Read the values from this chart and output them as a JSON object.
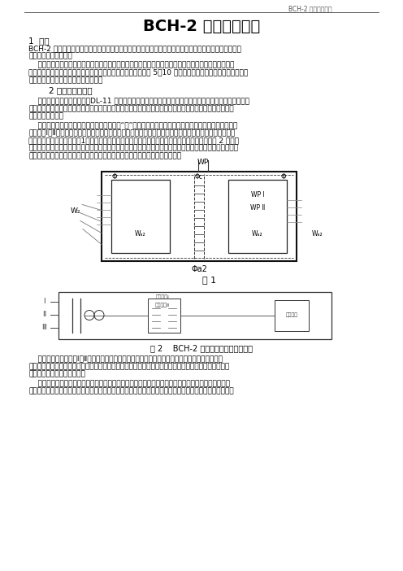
{
  "page_header": "BCH-2 型差动继电器",
  "title": "BCH-2 型差动继电器",
  "section1_heading": "1  用途",
  "section1_para1_l1": "BCH-2 型差动继电器（以下简称继电器）用于两绕组或三绕组电力变压器以及交流发电机的单相差动保护",
  "section1_para1_l2": "线路中，作为主保护。",
  "section1_para2_l1": "    继电器能预防在非故障状态时出现的暂态电流的作用，例如当电力变压器空载合闸，及在穿越性短路切",
  "section1_para2_l2": "除后电压恢复时出现很大的励磁涌流，其瞬时値常达额定电流的 5＾10 倍，这时差动保护不应误动作，但发生",
  "section1_para2_l3": "区内短路时，却能迅速动作切除故障。",
  "section2_heading": "2 结构和工作原理",
  "section2_para1_l1": "    差动继电器由两部分组成：DL-11 型电流继电器和中间饱和变流器（以下简称变流器），前者作为执行元",
  "section2_para1_l2": "件，后者具有短路绕组，它构成差动继电器的一些主要技术性能，如直流偏磁特性消除不平衡电流效应的自",
  "section2_para1_l3": "耦变流器性能等。",
  "section2_para2_l1": "    变流器的导磁体是一个三柱形铁芯，用几组“山”形导磁片叠装而成，在导磁体的中柱上防置工作绕组，",
  "section2_para2_l2": "平衡绕组Ⅰ、Ⅱ和短路绕组，此短路绕组与右侧边柱上的短路绕组相连接二次绕组放在导磁体的左侧边柱上，",
  "section2_para2_l3": "绕组在导磁体上的分布如图1，继电器的内部接线及其保护三次绕组电力变压器的原理接线图如图 2 所示，",
  "section2_para2_l4": "由于具有平衡绕组，且每隔一匹有一抽头，以便调整用以消除由于电流互感器变化不一致等原因所引起的平衡",
  "section2_para2_l5": "电流的效应，具有两个平衡绕组就使得继电器能用于保护三绕组的电力变压器。",
  "fig1_caption": "图 1",
  "fig2_caption": "图 2    BCH-2 型差动继电器原理接线图",
  "section3_para1_l1": "    工作绕组、平衡绕组Ⅰ、Ⅱ和短路绕组均可以满足很多种整定値的要求，继电器整定板上的数字即",
  "section3_para1_l2": "表示相应的绕组匹数，当改变整定板上的整定钉所在孔位置时，就可以便动作电流平衡作用和电流偏磁特",
  "section3_para1_l3": "性在更广的范围内进行整定。",
  "section3_para2_l1": "    变流器和执行元件放在一个总的盒子里，为了便于对执行元件进行单独的实验和试验变流器特性的需",
  "section3_para2_l2": "要，执行元件的线圈与变流器的二次绕组、平衡绕组与工作绕组是通过连接板进行相互连接的，因而可以在",
  "background_color": "#ffffff",
  "text_color": "#000000",
  "header_color": "#555555"
}
